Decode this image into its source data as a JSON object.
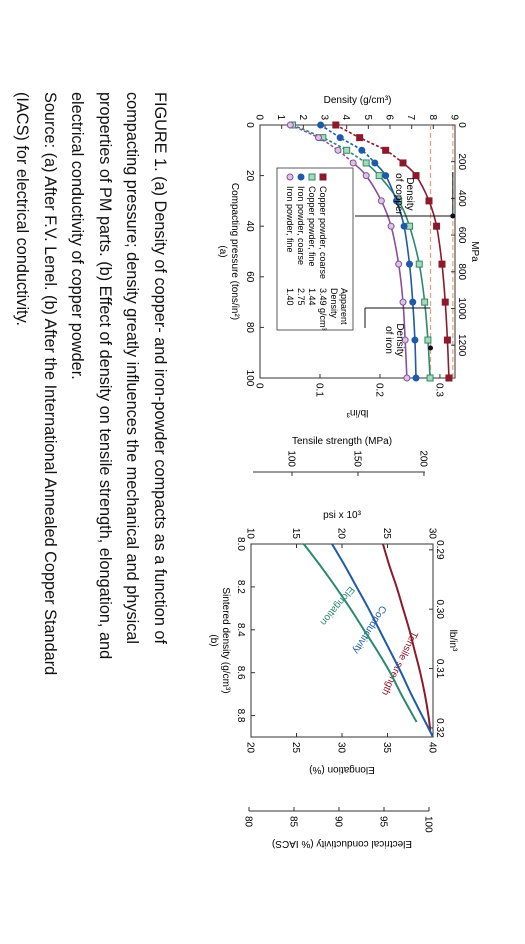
{
  "caption": {
    "lines": [
      "FIGURE 1.  (a) Density of copper- and iron-powder compacts as a function of",
      "compacting pressure; density greatly influences the mechanical and physical",
      "properties of PM parts. (b) Effect of density on tensile strength, elongation, and",
      "electrical conductivity of copper powder.",
      "Source: (a) After F.V. Lenel. (b) After the International Annealed Copper Standard",
      "(IACS) for electrical conductivity."
    ]
  },
  "chart_data": [
    {
      "type": "line",
      "panel_label": "(a)",
      "xlabel": "Compacting pressure (tons/in²)",
      "x_top_label": "MPa",
      "ylabel": "Density (g/cm³)",
      "y_right_label": "lb/in³",
      "xlim": [
        0,
        100
      ],
      "ylim": [
        0,
        9
      ],
      "x_ticks": [
        0,
        20,
        40,
        60,
        80,
        100
      ],
      "x_top_ticks": [
        0,
        200,
        400,
        600,
        800,
        1000,
        1200
      ],
      "y_ticks": [
        0,
        1,
        2,
        3,
        4,
        5,
        6,
        7,
        8,
        9
      ],
      "y_right_ticks": [
        0,
        0.1,
        0.2,
        0.3
      ],
      "grid": false,
      "legend_position": "bottom-right",
      "legend_header": "Apparent Density",
      "colors": {
        "copper_coarse": "#8b1a2b",
        "copper_fine": "#2c8a6c",
        "iron_coarse": "#1f5aa6",
        "iron_fine": "#8a4f9e",
        "density_line": "#e8a07a"
      },
      "series": [
        {
          "name": "Copper powder, coarse",
          "apparent_density": "3.49 g/cm³",
          "marker": "square-filled",
          "x": [
            0,
            5,
            10,
            15,
            20,
            30,
            40,
            55,
            70,
            85,
            100
          ],
          "y": [
            3.5,
            4.6,
            5.8,
            6.6,
            7.2,
            7.8,
            8.15,
            8.4,
            8.55,
            8.65,
            8.72
          ]
        },
        {
          "name": "Copper powder, fine",
          "apparent_density": "1.44",
          "marker": "square-open",
          "x": [
            0,
            5,
            10,
            15,
            20,
            30,
            40,
            55,
            70,
            85,
            100
          ],
          "y": [
            1.5,
            2.9,
            4.0,
            4.9,
            5.5,
            6.4,
            6.9,
            7.35,
            7.6,
            7.75,
            7.85
          ]
        },
        {
          "name": "Iron powder, coarse",
          "apparent_density": "2.75",
          "marker": "circle-filled",
          "x": [
            0,
            5,
            10,
            15,
            20,
            30,
            40,
            55,
            70,
            85,
            100
          ],
          "y": [
            2.8,
            3.7,
            4.7,
            5.3,
            5.8,
            6.3,
            6.65,
            6.9,
            7.05,
            7.15,
            7.2
          ]
        },
        {
          "name": "Iron powder, fine",
          "apparent_density": "1.40",
          "marker": "circle-open",
          "x": [
            0,
            5,
            10,
            15,
            20,
            30,
            40,
            55,
            70,
            85,
            100
          ],
          "y": [
            1.4,
            2.7,
            3.6,
            4.3,
            4.9,
            5.6,
            6.05,
            6.4,
            6.6,
            6.7,
            6.78
          ]
        }
      ],
      "reference_lines": [
        {
          "label": "Density of copper",
          "y": 8.9
        },
        {
          "label": "Density of iron",
          "y": 7.87
        }
      ]
    },
    {
      "type": "line",
      "panel_label": "(b)",
      "xlabel": "Sintered density (g/cm³)",
      "x_top_label": "lb/in³",
      "xlim": [
        8.0,
        8.9
      ],
      "x_ticks": [
        8.0,
        8.2,
        8.4,
        8.6,
        8.8
      ],
      "x_top_ticks": [
        0.29,
        0.3,
        0.31,
        0.32
      ],
      "axes": {
        "psi": {
          "label": "psi x 10³",
          "ticks": [
            10,
            15,
            20,
            25,
            30
          ],
          "range": [
            10,
            30
          ]
        },
        "tensile_mpa": {
          "label": "Tensile strength (MPa)",
          "ticks": [
            100,
            150,
            200
          ]
        },
        "elongation": {
          "label": "Elongation (%)",
          "ticks": [
            20,
            25,
            30,
            35,
            40
          ],
          "range": [
            20,
            40
          ]
        },
        "conductivity": {
          "label": "Electrical conductivity (% IACS)",
          "ticks": [
            80,
            85,
            90,
            95,
            100
          ]
        }
      },
      "grid": false,
      "series": [
        {
          "name": "Tensile strength",
          "axis": "psi",
          "color": "#8b1a2b",
          "x": [
            8.0,
            8.1,
            8.2,
            8.3,
            8.4,
            8.5,
            8.6,
            8.7,
            8.8,
            8.87
          ],
          "y": [
            24.5,
            25.2,
            26.0,
            26.7,
            27.4,
            28.0,
            28.6,
            29.1,
            29.5,
            29.7
          ]
        },
        {
          "name": "Conductivity",
          "axis": "elongation",
          "color": "#1f5aa6",
          "x": [
            8.0,
            8.1,
            8.2,
            8.3,
            8.4,
            8.5,
            8.6,
            8.7,
            8.8,
            8.9
          ],
          "y": [
            28.9,
            30.3,
            31.6,
            32.9,
            34.1,
            35.3,
            36.5,
            37.6,
            38.8,
            40.0
          ]
        },
        {
          "name": "Elongation",
          "axis": "elongation",
          "color": "#2c8a6c",
          "x": [
            8.0,
            8.1,
            8.2,
            8.3,
            8.4,
            8.5,
            8.6,
            8.7,
            8.8,
            8.83
          ],
          "y": [
            25.8,
            27.6,
            29.3,
            30.9,
            32.4,
            33.9,
            35.3,
            36.5,
            37.8,
            38.2
          ]
        }
      ]
    }
  ]
}
